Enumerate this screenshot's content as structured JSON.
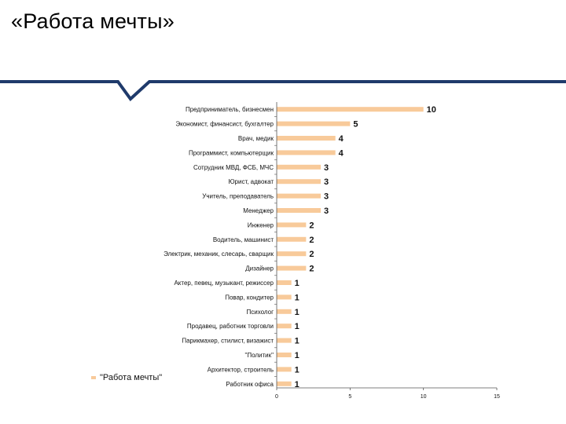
{
  "slide": {
    "title": "«Работа мечты»"
  },
  "colors": {
    "accent_line": "#1f3a6b",
    "bar": "#f8ca9a",
    "axis": "#555555"
  },
  "chart_data": {
    "type": "bar",
    "orientation": "horizontal",
    "categories": [
      "Предприниматель, бизнесмен",
      "Экономист, финансист, бухгалтер",
      "Врач, медик",
      "Программист, компьютерщик",
      "Сотрудник МВД, ФСБ, МЧС",
      "Юрист, адвокат",
      "Учитель, преподаватель",
      "Менеджер",
      "Инженер",
      "Водитель, машинист",
      "Электрик, механик, слесарь, сварщик",
      "Дизайнер",
      "Актер, певец, музыкант, режиссер",
      "Повар, кондитер",
      "Психолог",
      "Продавец, работник торговли",
      "Парикмахер, стилист, визажист",
      "\"Политик\"",
      "Архитектор, строитель",
      "Работник офиса"
    ],
    "series": [
      {
        "name": "\"Работа мечты\"",
        "values": [
          10,
          5,
          4,
          4,
          3,
          3,
          3,
          3,
          2,
          2,
          2,
          2,
          1,
          1,
          1,
          1,
          1,
          1,
          1,
          1
        ]
      }
    ],
    "data_labels": true,
    "xlim": [
      0,
      15
    ],
    "xticks": [
      0,
      5,
      10,
      15
    ],
    "grid": false,
    "legend_position": "bottom-left"
  }
}
